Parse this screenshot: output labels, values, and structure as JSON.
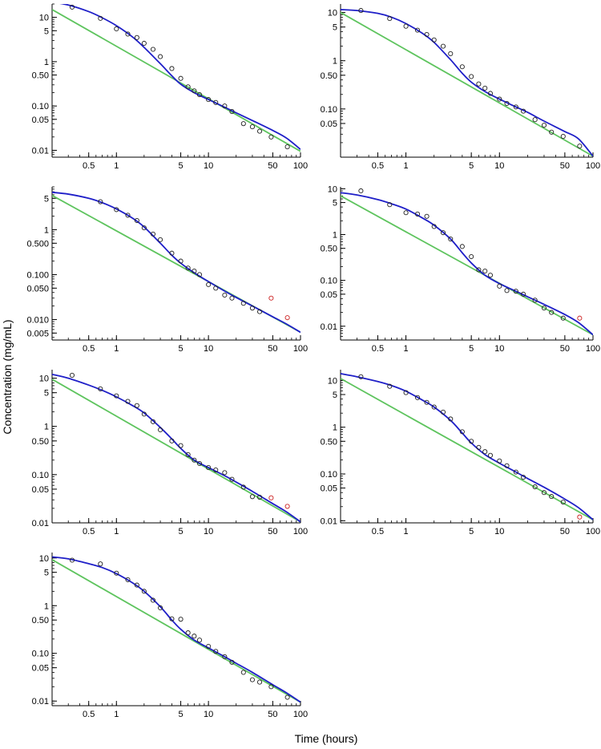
{
  "figure": {
    "ylabel": "Concentration (mg/mL)",
    "xlabel": "Time (hours)"
  },
  "style": {
    "fit_color": "#1f1fc8",
    "line_color": "#5ec45e",
    "marker_black": "#222222",
    "marker_red": "#cc2222",
    "axis_color": "#000000"
  },
  "chart_data": [
    {
      "type": "scatter",
      "xscale": "log",
      "yscale": "log",
      "xlim": [
        0.2,
        100
      ],
      "ylim": [
        0.007,
        20
      ],
      "xticks": [
        0.5,
        1,
        5,
        10,
        50,
        100
      ],
      "xtick_labels": [
        "0.5",
        "1",
        "5",
        "10",
        "50",
        "100"
      ],
      "yticks": [
        0.01,
        0.05,
        0.1,
        0.5,
        1,
        5,
        10
      ],
      "ytick_labels": [
        "0.01",
        "0.05",
        "0.10",
        "0.50",
        "1",
        "5",
        "10"
      ],
      "observed": {
        "x": [
          0.33,
          0.67,
          1.0,
          1.33,
          1.67,
          2.0,
          2.5,
          3.0,
          4.0,
          5.0,
          6.0,
          7.0,
          8.0,
          10.0,
          12.0,
          15.0,
          18.0,
          24.0,
          30.0,
          36.0,
          48.0,
          72.0
        ],
        "y": [
          17,
          9.5,
          5.5,
          4.2,
          3.5,
          2.6,
          1.9,
          1.3,
          0.7,
          0.42,
          0.27,
          0.22,
          0.18,
          0.14,
          0.12,
          0.1,
          0.075,
          0.04,
          0.034,
          0.027,
          0.02,
          0.012
        ],
        "red": []
      },
      "fit": {
        "x": [
          0.2,
          0.3,
          0.5,
          0.7,
          1,
          1.5,
          2,
          3,
          4,
          5,
          7,
          10,
          15,
          20,
          30,
          50,
          70,
          100
        ],
        "y": [
          22,
          19,
          13.5,
          9.8,
          6.5,
          3.6,
          2.1,
          0.9,
          0.48,
          0.31,
          0.2,
          0.14,
          0.094,
          0.07,
          0.047,
          0.028,
          0.019,
          0.0105
        ]
      },
      "line": {
        "x": [
          0.2,
          100
        ],
        "y": [
          15,
          0.0095
        ]
      }
    },
    {
      "type": "scatter",
      "xscale": "log",
      "yscale": "log",
      "xlim": [
        0.2,
        100
      ],
      "ylim": [
        0.01,
        15
      ],
      "xticks": [
        0.5,
        1,
        5,
        10,
        50,
        100
      ],
      "xtick_labels": [
        "0.5",
        "1",
        "5",
        "10",
        "50",
        "100"
      ],
      "yticks": [
        0.05,
        0.1,
        0.5,
        1,
        5,
        10
      ],
      "ytick_labels": [
        "0.05",
        "0.10",
        "0.50",
        "1",
        "5",
        "10"
      ],
      "observed": {
        "x": [
          0.33,
          0.67,
          1.0,
          1.33,
          1.67,
          2.0,
          2.5,
          3.0,
          4.0,
          5.0,
          6.0,
          7.0,
          8.0,
          10.0,
          12.0,
          15.0,
          18.0,
          24.0,
          30.0,
          36.0,
          48.0,
          72.0
        ],
        "y": [
          11,
          7.5,
          5.2,
          4.3,
          3.5,
          2.7,
          2.0,
          1.4,
          0.75,
          0.47,
          0.33,
          0.27,
          0.21,
          0.16,
          0.13,
          0.11,
          0.09,
          0.06,
          0.046,
          0.033,
          0.027,
          0.017
        ],
        "red": []
      },
      "fit": {
        "x": [
          0.2,
          0.3,
          0.5,
          0.7,
          1,
          1.5,
          2,
          3,
          4,
          5,
          7,
          10,
          15,
          20,
          30,
          50,
          70,
          100
        ],
        "y": [
          11.5,
          11,
          9.6,
          8.0,
          5.9,
          3.7,
          2.4,
          1.05,
          0.55,
          0.36,
          0.23,
          0.16,
          0.11,
          0.085,
          0.056,
          0.034,
          0.024,
          0.0105
        ]
      },
      "line": {
        "x": [
          0.2,
          100
        ],
        "y": [
          10,
          0.0105
        ]
      }
    },
    {
      "type": "scatter",
      "xscale": "log",
      "yscale": "log",
      "xlim": [
        0.2,
        100
      ],
      "ylim": [
        0.0035,
        9
      ],
      "xticks": [
        0.5,
        1,
        5,
        10,
        50,
        100
      ],
      "xtick_labels": [
        "0.5",
        "1",
        "5",
        "10",
        "50",
        "100"
      ],
      "yticks": [
        0.005,
        0.01,
        0.05,
        0.1,
        0.5,
        1,
        5
      ],
      "ytick_labels": [
        "0.005",
        "0.010",
        "0.050",
        "0.100",
        "0.500",
        "1",
        "5"
      ],
      "observed": {
        "x": [
          0.67,
          1.0,
          1.33,
          1.67,
          2.0,
          2.5,
          3.0,
          4.0,
          5.0,
          6.0,
          7.0,
          8.0,
          10.0,
          12.0,
          15.0,
          18.0,
          24.0,
          30.0,
          36.0
        ],
        "y": [
          4.2,
          2.8,
          2.1,
          1.6,
          1.1,
          0.8,
          0.6,
          0.3,
          0.2,
          0.14,
          0.12,
          0.1,
          0.06,
          0.05,
          0.035,
          0.03,
          0.023,
          0.018,
          0.015
        ],
        "red": [
          [
            48.0,
            0.03
          ],
          [
            72.0,
            0.011
          ]
        ]
      },
      "fit": {
        "x": [
          0.2,
          0.3,
          0.5,
          0.7,
          1,
          1.5,
          2,
          3,
          4,
          5,
          7,
          10,
          15,
          20,
          30,
          50,
          70,
          100
        ],
        "y": [
          6.8,
          6.2,
          5.0,
          4.0,
          2.9,
          1.8,
          1.15,
          0.5,
          0.27,
          0.18,
          0.11,
          0.07,
          0.043,
          0.031,
          0.02,
          0.0115,
          0.008,
          0.0052
        ]
      },
      "line": {
        "x": [
          0.2,
          100
        ],
        "y": [
          5.8,
          0.0052
        ]
      }
    },
    {
      "type": "scatter",
      "xscale": "log",
      "yscale": "log",
      "xlim": [
        0.2,
        100
      ],
      "ylim": [
        0.005,
        11
      ],
      "xticks": [
        0.5,
        1,
        5,
        10,
        50,
        100
      ],
      "xtick_labels": [
        "0.5",
        "1",
        "5",
        "10",
        "50",
        "100"
      ],
      "yticks": [
        0.01,
        0.05,
        0.1,
        0.5,
        1,
        5,
        10
      ],
      "ytick_labels": [
        "0.01",
        "0.05",
        "0.10",
        "0.50",
        "1",
        "5",
        "10"
      ],
      "observed": {
        "x": [
          0.33,
          0.67,
          1.0,
          1.33,
          1.67,
          2.0,
          2.5,
          3.0,
          4.0,
          5.0,
          6.0,
          7.0,
          8.0,
          10.0,
          12.0,
          15.0,
          18.0,
          24.0,
          30.0,
          36.0,
          48.0
        ],
        "y": [
          9,
          4.5,
          3.0,
          2.8,
          2.5,
          1.5,
          1.1,
          0.8,
          0.55,
          0.33,
          0.17,
          0.16,
          0.13,
          0.075,
          0.06,
          0.058,
          0.05,
          0.037,
          0.025,
          0.02,
          0.015
        ],
        "red": [
          [
            72.0,
            0.015
          ]
        ]
      },
      "fit": {
        "x": [
          0.2,
          0.3,
          0.5,
          0.7,
          1,
          1.5,
          2,
          3,
          4,
          5,
          7,
          10,
          15,
          20,
          30,
          50,
          70,
          100
        ],
        "y": [
          8.2,
          7.3,
          5.8,
          4.7,
          3.6,
          2.3,
          1.6,
          0.8,
          0.4,
          0.24,
          0.13,
          0.085,
          0.058,
          0.044,
          0.03,
          0.018,
          0.012,
          0.0065
        ]
      },
      "line": {
        "x": [
          0.2,
          100
        ],
        "y": [
          7.0,
          0.0065
        ]
      }
    },
    {
      "type": "scatter",
      "xscale": "log",
      "yscale": "log",
      "xlim": [
        0.2,
        100
      ],
      "ylim": [
        0.01,
        15
      ],
      "xticks": [
        0.5,
        1,
        5,
        10,
        50,
        100
      ],
      "xtick_labels": [
        "0.5",
        "1",
        "5",
        "10",
        "50",
        "100"
      ],
      "yticks": [
        0.01,
        0.05,
        0.1,
        0.5,
        1,
        5,
        10
      ],
      "ytick_labels": [
        "0.01",
        "0.05",
        "0.10",
        "0.50",
        "1",
        "5",
        "10"
      ],
      "observed": {
        "x": [
          0.33,
          0.67,
          1.0,
          1.33,
          1.67,
          2.0,
          2.5,
          3.0,
          4.0,
          5.0,
          6.0,
          7.0,
          8.0,
          10.0,
          12.0,
          15.0,
          18.0,
          24.0,
          30.0,
          36.0
        ],
        "y": [
          11.5,
          6.0,
          4.3,
          3.3,
          2.7,
          1.8,
          1.25,
          0.85,
          0.5,
          0.4,
          0.26,
          0.2,
          0.17,
          0.14,
          0.125,
          0.11,
          0.08,
          0.055,
          0.035,
          0.034
        ],
        "red": [
          [
            48.0,
            0.033
          ],
          [
            72.0,
            0.022
          ]
        ]
      },
      "fit": {
        "x": [
          0.2,
          0.3,
          0.5,
          0.7,
          1,
          1.5,
          2,
          3,
          4,
          5,
          7,
          10,
          15,
          20,
          30,
          50,
          70,
          100
        ],
        "y": [
          12,
          10,
          7.2,
          5.6,
          4.1,
          2.7,
          1.9,
          0.95,
          0.55,
          0.35,
          0.2,
          0.14,
          0.095,
          0.07,
          0.045,
          0.025,
          0.017,
          0.0105
        ]
      },
      "line": {
        "x": [
          0.2,
          100
        ],
        "y": [
          9.5,
          0.0105
        ]
      }
    },
    {
      "type": "scatter",
      "xscale": "log",
      "yscale": "log",
      "xlim": [
        0.2,
        100
      ],
      "ylim": [
        0.009,
        17
      ],
      "xticks": [
        0.5,
        1,
        5,
        10,
        50,
        100
      ],
      "xtick_labels": [
        "0.5",
        "1",
        "5",
        "10",
        "50",
        "100"
      ],
      "yticks": [
        0.01,
        0.05,
        0.1,
        0.5,
        1,
        5,
        10
      ],
      "ytick_labels": [
        "0.01",
        "0.05",
        "0.10",
        "0.50",
        "1",
        "5",
        "10"
      ],
      "observed": {
        "x": [
          0.33,
          0.67,
          1.0,
          1.33,
          1.67,
          2.0,
          2.5,
          3.0,
          4.0,
          5.0,
          6.0,
          7.0,
          8.0,
          10.0,
          12.0,
          15.0,
          18.0,
          24.0,
          30.0,
          36.0,
          48.0
        ],
        "y": [
          12,
          7.5,
          5.5,
          4.3,
          3.4,
          2.7,
          2.1,
          1.5,
          0.8,
          0.5,
          0.37,
          0.3,
          0.25,
          0.19,
          0.15,
          0.11,
          0.085,
          0.053,
          0.04,
          0.033,
          0.025
        ],
        "red": [
          [
            72.0,
            0.012
          ]
        ]
      },
      "fit": {
        "x": [
          0.2,
          0.3,
          0.5,
          0.7,
          1,
          1.5,
          2,
          3,
          4,
          5,
          7,
          10,
          15,
          20,
          30,
          50,
          70,
          100
        ],
        "y": [
          14,
          12,
          9.5,
          7.8,
          5.9,
          3.8,
          2.7,
          1.4,
          0.75,
          0.46,
          0.26,
          0.17,
          0.11,
          0.08,
          0.052,
          0.029,
          0.019,
          0.0105
        ]
      },
      "line": {
        "x": [
          0.2,
          100
        ],
        "y": [
          11,
          0.0105
        ]
      }
    },
    {
      "type": "scatter",
      "xscale": "log",
      "yscale": "log",
      "xlim": [
        0.2,
        100
      ],
      "ylim": [
        0.008,
        13
      ],
      "xticks": [
        0.5,
        1,
        5,
        10,
        50,
        100
      ],
      "xtick_labels": [
        "0.5",
        "1",
        "5",
        "10",
        "50",
        "100"
      ],
      "yticks": [
        0.01,
        0.05,
        0.1,
        0.5,
        1,
        5,
        10
      ],
      "ytick_labels": [
        "0.01",
        "0.05",
        "0.10",
        "0.50",
        "1",
        "5",
        "10"
      ],
      "observed": {
        "x": [
          0.33,
          0.67,
          1.0,
          1.33,
          1.67,
          2.0,
          2.5,
          3.0,
          4.0,
          5.0,
          6.0,
          7.0,
          8.0,
          10.0,
          12.0,
          15.0,
          18.0,
          24.0,
          30.0,
          36.0,
          48.0,
          72.0
        ],
        "y": [
          9,
          7.5,
          4.8,
          3.5,
          2.7,
          2.0,
          1.3,
          0.9,
          0.53,
          0.52,
          0.27,
          0.23,
          0.19,
          0.14,
          0.11,
          0.085,
          0.065,
          0.04,
          0.028,
          0.025,
          0.02,
          0.012
        ],
        "red": []
      },
      "fit": {
        "x": [
          0.2,
          0.3,
          0.5,
          0.7,
          1,
          1.5,
          2,
          3,
          4,
          5,
          7,
          10,
          15,
          20,
          30,
          50,
          70,
          100
        ],
        "y": [
          10.5,
          9.6,
          7.6,
          6.3,
          4.7,
          3.0,
          2.0,
          0.95,
          0.5,
          0.32,
          0.19,
          0.13,
          0.085,
          0.062,
          0.04,
          0.022,
          0.015,
          0.0095
        ]
      },
      "line": {
        "x": [
          0.2,
          100
        ],
        "y": [
          9.2,
          0.0095
        ]
      }
    }
  ]
}
